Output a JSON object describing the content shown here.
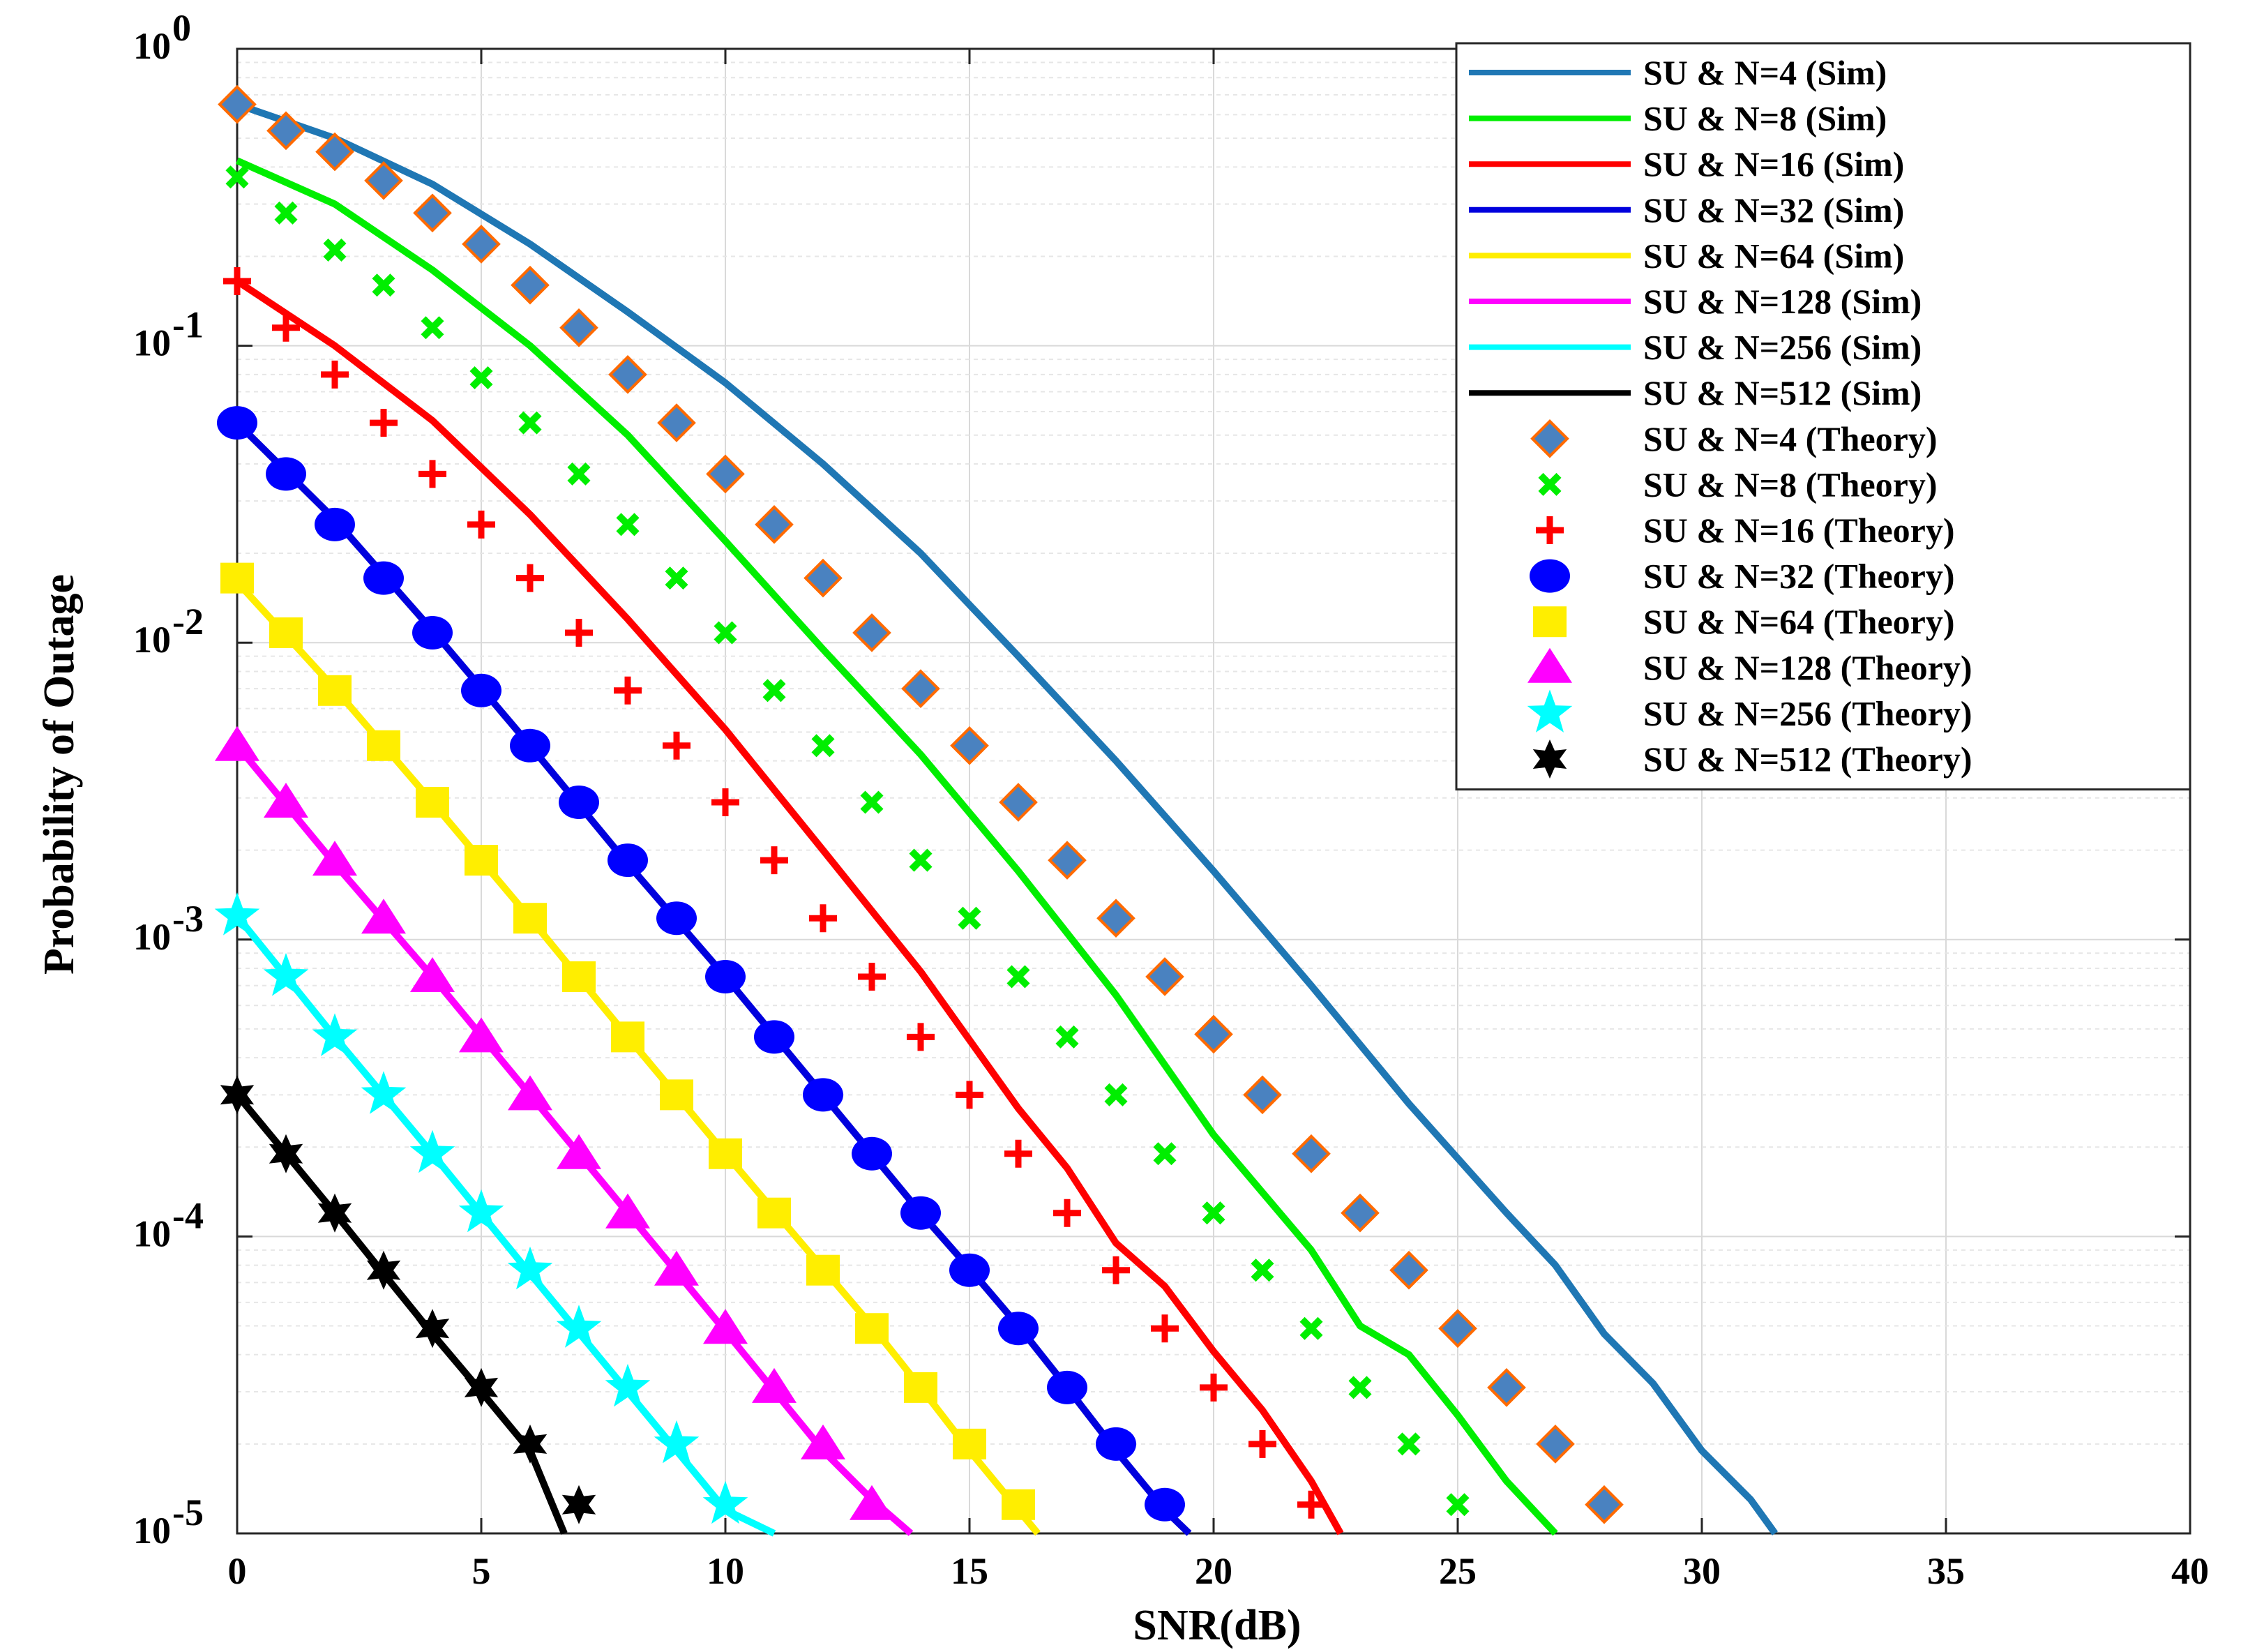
{
  "chart_data": {
    "type": "line",
    "title": "",
    "xlabel": "SNR(dB)",
    "ylabel": "Probability of Outage",
    "xlim": [
      0,
      40
    ],
    "ylim": [
      1e-05,
      1
    ],
    "yscale": "log",
    "grid": true,
    "legend_position": "top-right",
    "x_ticks": [
      0,
      5,
      10,
      15,
      20,
      25,
      30,
      35,
      40
    ],
    "x_tick_labels": [
      "0",
      "5",
      "10",
      "15",
      "20",
      "25",
      "30",
      "35",
      "40"
    ],
    "y_ticks": [
      {
        "value": 1,
        "base": "10",
        "exp": "0"
      },
      {
        "value": 0.1,
        "base": "10",
        "exp": "-1"
      },
      {
        "value": 0.01,
        "base": "10",
        "exp": "-2"
      },
      {
        "value": 0.001,
        "base": "10",
        "exp": "-3"
      },
      {
        "value": 0.0001,
        "base": "10",
        "exp": "-4"
      },
      {
        "value": 1e-05,
        "base": "10",
        "exp": "-5"
      }
    ],
    "sim_series": [
      {
        "name": "SU & N=4 (Sim)",
        "color": "#1f77b4",
        "x": [
          0,
          2,
          4,
          6,
          8,
          10,
          12,
          14,
          16,
          18,
          20,
          22,
          24,
          26,
          27,
          28,
          29,
          30,
          31,
          31.5
        ],
        "y": [
          0.65,
          0.5,
          0.35,
          0.22,
          0.13,
          0.075,
          0.04,
          0.02,
          0.009,
          0.004,
          0.0017,
          0.0007,
          0.00028,
          0.00012,
          8e-05,
          4.7e-05,
          3.2e-05,
          1.9e-05,
          1.3e-05,
          1e-05
        ]
      },
      {
        "name": "SU & N=8 (Sim)",
        "color": "#00ee00",
        "x": [
          0,
          2,
          4,
          6,
          8,
          10,
          12,
          14,
          16,
          18,
          20,
          22,
          23,
          24,
          25,
          26,
          27
        ],
        "y": [
          0.42,
          0.3,
          0.18,
          0.1,
          0.05,
          0.022,
          0.0095,
          0.0042,
          0.0017,
          0.00065,
          0.00022,
          9e-05,
          5e-05,
          4e-05,
          2.5e-05,
          1.5e-05,
          1e-05
        ]
      },
      {
        "name": "SU & N=16 (Sim)",
        "color": "#ff0000",
        "x": [
          0,
          2,
          4,
          6,
          8,
          10,
          12,
          14,
          16,
          17,
          18,
          19,
          20,
          21,
          22,
          22.6
        ],
        "y": [
          0.165,
          0.1,
          0.056,
          0.027,
          0.012,
          0.0051,
          0.002,
          0.00078,
          0.00027,
          0.00017,
          9.5e-05,
          6.8e-05,
          4.1e-05,
          2.6e-05,
          1.5e-05,
          1e-05
        ]
      },
      {
        "name": "SU & N=32 (Sim)",
        "color": "#0000dd",
        "x": [
          0,
          2,
          4,
          6,
          8,
          10,
          12,
          14,
          15,
          16,
          17,
          18,
          19,
          19.5
        ],
        "y": [
          0.055,
          0.026,
          0.011,
          0.0045,
          0.0018,
          0.00075,
          0.0003,
          0.00012,
          7.8e-05,
          5e-05,
          3.1e-05,
          1.9e-05,
          1.2e-05,
          1e-05
        ]
      },
      {
        "name": "SU & N=64 (Sim)",
        "color": "#ffee00",
        "x": [
          0,
          2,
          4,
          6,
          8,
          10,
          12,
          13,
          14,
          15,
          16,
          16.4
        ],
        "y": [
          0.016,
          0.007,
          0.0029,
          0.00118,
          0.00047,
          0.00019,
          7.8e-05,
          5e-05,
          3.1e-05,
          1.9e-05,
          1.2e-05,
          1e-05
        ]
      },
      {
        "name": "SU & N=128 (Sim)",
        "color": "#ff00ff",
        "x": [
          0,
          2,
          4,
          6,
          8,
          10,
          12,
          13,
          13.8
        ],
        "y": [
          0.0045,
          0.0018,
          0.00075,
          0.0003,
          0.00012,
          4.8e-05,
          1.9e-05,
          1.3e-05,
          1e-05
        ]
      },
      {
        "name": "SU & N=256 (Sim)",
        "color": "#00ffff",
        "x": [
          0,
          2,
          4,
          6,
          8,
          9,
          10,
          11
        ],
        "y": [
          0.0012,
          0.00047,
          0.00019,
          7.5e-05,
          3e-05,
          1.9e-05,
          1.2e-05,
          1e-05
        ]
      },
      {
        "name": "SU & N=512 (Sim)",
        "color": "#000000",
        "x": [
          0,
          1,
          2,
          3,
          4,
          5,
          6,
          6.7
        ],
        "y": [
          0.0003,
          0.00019,
          0.00012,
          7.5e-05,
          4.7e-05,
          3e-05,
          1.9e-05,
          1e-05
        ]
      }
    ],
    "theory_series": [
      {
        "name": "SU & N=4 (Theory)",
        "color": "#4a82c0",
        "edge": "#ff6a00",
        "marker": "diamond",
        "x": [
          0,
          1,
          2,
          3,
          4,
          5,
          6,
          7,
          8,
          9,
          10,
          11,
          12,
          13,
          14,
          15,
          16,
          17,
          18,
          19,
          20,
          21,
          22,
          23,
          24,
          25,
          26,
          27,
          28
        ],
        "y": [
          0.65,
          0.53,
          0.45,
          0.36,
          0.28,
          0.22,
          0.16,
          0.115,
          0.08,
          0.055,
          0.037,
          0.025,
          0.0165,
          0.0108,
          0.007,
          0.0045,
          0.0029,
          0.00185,
          0.00118,
          0.00075,
          0.00048,
          0.0003,
          0.00019,
          0.00012,
          7.7e-05,
          4.9e-05,
          3.1e-05,
          2e-05,
          1.25e-05
        ]
      },
      {
        "name": "SU & N=8 (Theory)",
        "color": "#00ee00",
        "marker": "x",
        "x": [
          0,
          1,
          2,
          3,
          4,
          5,
          6,
          7,
          8,
          9,
          10,
          11,
          12,
          13,
          14,
          15,
          16,
          17,
          18,
          19,
          20,
          21,
          22,
          23,
          24,
          25
        ],
        "y": [
          0.37,
          0.28,
          0.21,
          0.16,
          0.115,
          0.078,
          0.055,
          0.037,
          0.025,
          0.0165,
          0.0108,
          0.0069,
          0.0045,
          0.0029,
          0.00185,
          0.00118,
          0.00075,
          0.00047,
          0.0003,
          0.00019,
          0.00012,
          7.7e-05,
          4.9e-05,
          3.1e-05,
          2e-05,
          1.25e-05
        ]
      },
      {
        "name": "SU & N=16 (Theory)",
        "color": "#ff0000",
        "marker": "plus",
        "x": [
          0,
          1,
          2,
          3,
          4,
          5,
          6,
          7,
          8,
          9,
          10,
          11,
          12,
          13,
          14,
          15,
          16,
          17,
          18,
          19,
          20,
          21,
          22
        ],
        "y": [
          0.165,
          0.115,
          0.08,
          0.055,
          0.037,
          0.025,
          0.0165,
          0.0108,
          0.0069,
          0.0045,
          0.0029,
          0.00185,
          0.00118,
          0.00075,
          0.00047,
          0.0003,
          0.00019,
          0.00012,
          7.7e-05,
          4.9e-05,
          3.1e-05,
          2e-05,
          1.25e-05
        ]
      },
      {
        "name": "SU & N=32 (Theory)",
        "color": "#0000ff",
        "marker": "circle",
        "x": [
          0,
          1,
          2,
          3,
          4,
          5,
          6,
          7,
          8,
          9,
          10,
          11,
          12,
          13,
          14,
          15,
          16,
          17,
          18,
          19
        ],
        "y": [
          0.055,
          0.037,
          0.025,
          0.0165,
          0.0108,
          0.0069,
          0.0045,
          0.0029,
          0.00185,
          0.00118,
          0.00075,
          0.00047,
          0.0003,
          0.00019,
          0.00012,
          7.7e-05,
          4.9e-05,
          3.1e-05,
          2e-05,
          1.25e-05
        ]
      },
      {
        "name": "SU & N=64 (Theory)",
        "color": "#ffee00",
        "marker": "square",
        "x": [
          0,
          1,
          2,
          3,
          4,
          5,
          6,
          7,
          8,
          9,
          10,
          11,
          12,
          13,
          14,
          15,
          16
        ],
        "y": [
          0.0165,
          0.0108,
          0.0069,
          0.0045,
          0.0029,
          0.00185,
          0.00118,
          0.00075,
          0.00047,
          0.0003,
          0.00019,
          0.00012,
          7.7e-05,
          4.9e-05,
          3.1e-05,
          2e-05,
          1.25e-05
        ]
      },
      {
        "name": "SU & N=128 (Theory)",
        "color": "#ff00ff",
        "marker": "triangle",
        "x": [
          0,
          1,
          2,
          3,
          4,
          5,
          6,
          7,
          8,
          9,
          10,
          11,
          12,
          13
        ],
        "y": [
          0.0045,
          0.0029,
          0.00185,
          0.00118,
          0.00075,
          0.00047,
          0.0003,
          0.00019,
          0.00012,
          7.7e-05,
          4.9e-05,
          3.1e-05,
          2e-05,
          1.25e-05
        ]
      },
      {
        "name": "SU & N=256 (Theory)",
        "color": "#00ffff",
        "marker": "star5",
        "x": [
          0,
          1,
          2,
          3,
          4,
          5,
          6,
          7,
          8,
          9,
          10
        ],
        "y": [
          0.0012,
          0.00075,
          0.00047,
          0.0003,
          0.00019,
          0.00012,
          7.7e-05,
          4.9e-05,
          3.1e-05,
          2e-05,
          1.25e-05
        ]
      },
      {
        "name": "SU & N=512 (Theory)",
        "color": "#000000",
        "marker": "star6",
        "x": [
          0,
          1,
          2,
          3,
          4,
          5,
          6,
          7
        ],
        "y": [
          0.0003,
          0.00019,
          0.00012,
          7.7e-05,
          4.9e-05,
          3.1e-05,
          2e-05,
          1.25e-05
        ]
      }
    ]
  }
}
